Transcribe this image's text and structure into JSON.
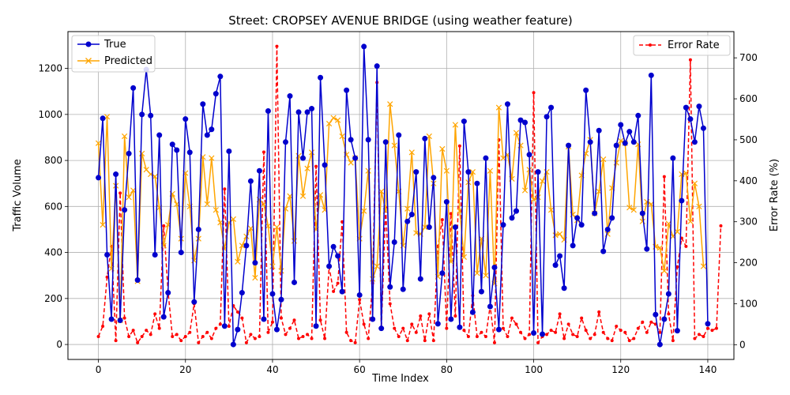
{
  "chart_data": {
    "type": "line",
    "title": "Street: CROPSEY AVENUE BRIDGE (using weather feature)",
    "xlabel": "Time Index",
    "ylabel": "Traffic Volume",
    "y2label": "Error Rate (%)",
    "xlim": [
      -7,
      146
    ],
    "ylim": [
      -65,
      1360
    ],
    "y2lim": [
      -36,
      764
    ],
    "x_ticks": [
      0,
      20,
      40,
      60,
      80,
      100,
      120,
      140
    ],
    "y_ticks": [
      0,
      200,
      400,
      600,
      800,
      1000,
      1200
    ],
    "y2_ticks": [
      0,
      100,
      200,
      300,
      400,
      500,
      600,
      700
    ],
    "grid": true,
    "legend_left_placement": "upper-left",
    "legend_right_placement": "upper-right",
    "series": [
      {
        "name": "True",
        "axis": "left",
        "color": "#0000cd",
        "marker": "circle",
        "values": [
          725,
          983,
          390,
          110,
          740,
          105,
          585,
          830,
          1115,
          280,
          1000,
          1195,
          995,
          390,
          910,
          120,
          225,
          870,
          845,
          400,
          980,
          835,
          185,
          500,
          1045,
          910,
          935,
          1090,
          1165,
          80,
          840,
          0,
          65,
          225,
          430,
          710,
          355,
          755,
          110,
          1015,
          220,
          65,
          195,
          880,
          1080,
          270,
          1010,
          810,
          1010,
          1025,
          80,
          1160,
          780,
          340,
          425,
          385,
          230,
          1105,
          890,
          810,
          215,
          1295,
          890,
          110,
          1210,
          70,
          880,
          250,
          445,
          910,
          240,
          535,
          565,
          750,
          285,
          895,
          510,
          725,
          90,
          310,
          620,
          110,
          510,
          75,
          970,
          750,
          140,
          700,
          230,
          810,
          165,
          335,
          65,
          520,
          1045,
          550,
          580,
          975,
          965,
          825,
          50,
          750,
          45,
          990,
          1030,
          345,
          385,
          245,
          865,
          430,
          550,
          520,
          1105,
          880,
          570,
          930,
          405,
          500,
          550,
          865,
          955,
          875,
          925,
          880,
          995,
          570,
          415,
          1170,
          130,
          0,
          110,
          220,
          810,
          60,
          625,
          1030,
          980,
          880,
          1035,
          940,
          90
        ]
      },
      {
        "name": "Predicted",
        "axis": "left",
        "color": "#ffa500",
        "marker": "x",
        "values": [
          875,
          520,
          990,
          330,
          690,
          105,
          905,
          640,
          670,
          275,
          830,
          760,
          740,
          730,
          595,
          430,
          520,
          655,
          610,
          460,
          745,
          600,
          365,
          460,
          815,
          610,
          810,
          585,
          530,
          415,
          530,
          545,
          360,
          430,
          470,
          505,
          290,
          630,
          610,
          515,
          340,
          510,
          320,
          590,
          645,
          450,
          820,
          645,
          765,
          835,
          500,
          650,
          585,
          960,
          985,
          975,
          905,
          825,
          790,
          810,
          460,
          580,
          755,
          285,
          340,
          665,
          580,
          1045,
          865,
          665,
          430,
          590,
          835,
          485,
          480,
          510,
          905,
          700,
          295,
          850,
          755,
          360,
          955,
          580,
          380,
          705,
          750,
          310,
          460,
          300,
          755,
          265,
          1030,
          810,
          825,
          720,
          920,
          865,
          670,
          760,
          630,
          640,
          710,
          750,
          585,
          475,
          480,
          455,
          860,
          565,
          540,
          735,
          830,
          890,
          570,
          665,
          805,
          480,
          680,
          790,
          885,
          875,
          595,
          585,
          870,
          535,
          620,
          610,
          425,
          420,
          320,
          525,
          470,
          490,
          740,
          745,
          535,
          700,
          600,
          340
        ]
      },
      {
        "name": "Error Rate",
        "axis": "right",
        "color": "#ff0000",
        "marker": "point",
        "linestyle": "dashed",
        "values": [
          20,
          45,
          165,
          240,
          10,
          370,
          65,
          20,
          35,
          5,
          20,
          35,
          25,
          75,
          40,
          290,
          130,
          20,
          25,
          10,
          20,
          30,
          100,
          5,
          20,
          30,
          15,
          40,
          50,
          380,
          45,
          95,
          80,
          65,
          5,
          25,
          15,
          20,
          470,
          30,
          55,
          728,
          65,
          25,
          40,
          60,
          15,
          20,
          25,
          15,
          435,
          60,
          15,
          190,
          130,
          150,
          300,
          30,
          10,
          5,
          110,
          50,
          15,
          150,
          640,
          40,
          335,
          100,
          40,
          20,
          40,
          10,
          50,
          30,
          70,
          10,
          75,
          10,
          240,
          305,
          40,
          320,
          70,
          485,
          35,
          20,
          120,
          20,
          30,
          20,
          95,
          5,
          500,
          40,
          20,
          65,
          50,
          30,
          15,
          25,
          615,
          5,
          20,
          25,
          35,
          30,
          75,
          15,
          50,
          25,
          20,
          65,
          35,
          15,
          25,
          80,
          30,
          15,
          10,
          45,
          35,
          30,
          10,
          15,
          40,
          55,
          30,
          55,
          50,
          30,
          410,
          75,
          10,
          190,
          260,
          240,
          695,
          15,
          25,
          20,
          40,
          35,
          40,
          290
        ]
      }
    ]
  }
}
